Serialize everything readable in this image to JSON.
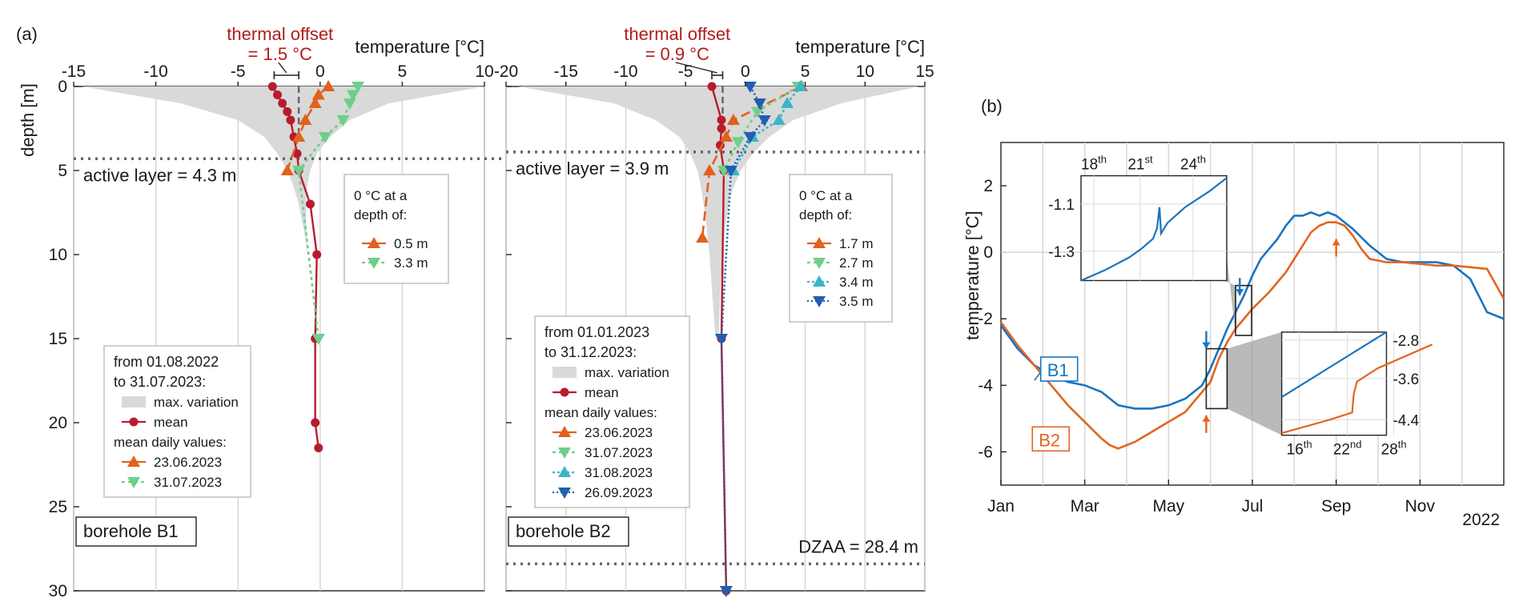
{
  "figure": {
    "panel_a_label": "(a)",
    "panel_b_label": "(b)"
  },
  "colors": {
    "mean": "#b81c2c",
    "d0623": "#e0621c",
    "d0731": "#6fcf8a",
    "d0831": "#3bb5c8",
    "d0926": "#1f5fb0",
    "variation": "#d9d9d9",
    "b1": "#1a74c0",
    "b2": "#e2651f",
    "offset_text": "#b01c1c"
  },
  "chart_data": [
    {
      "id": "B1",
      "type": "line",
      "title": "borehole B1",
      "xlabel": "temperature [°C]",
      "ylabel": "depth [m]",
      "xlim": [
        -15,
        10
      ],
      "ylim": [
        30,
        0
      ],
      "xticks": [
        "-15",
        "-10",
        "-5",
        "0",
        "5",
        "10"
      ],
      "yticks": [
        "0",
        "5",
        "10",
        "15",
        "20",
        "25",
        "30"
      ],
      "offset_label": [
        "thermal offset",
        "= 1.5 °C"
      ],
      "offset_bracket": [
        -2.8,
        -1.3
      ],
      "active_layer_depth": 4.3,
      "active_layer_label": "active layer = 4.3 m",
      "variation_envelope": {
        "depth": [
          0,
          1,
          2,
          3,
          4,
          5,
          6,
          7,
          8,
          9,
          10
        ],
        "min": [
          -14.5,
          -8.5,
          -5.0,
          -3.4,
          -2.6,
          -2.0,
          -1.6,
          -1.3,
          -1.1,
          -0.9,
          -0.8
        ],
        "max": [
          10.0,
          4.2,
          1.8,
          0.6,
          -0.2,
          -0.6,
          -0.8,
          -0.85,
          -0.85,
          -0.8,
          -0.8
        ]
      },
      "series": [
        {
          "name": "mean",
          "marker": "circle",
          "depth": [
            0,
            0.5,
            1,
            1.5,
            2,
            3,
            4,
            5,
            7,
            10,
            15,
            20,
            21.5
          ],
          "temp": [
            -2.9,
            -2.6,
            -2.3,
            -2.0,
            -1.8,
            -1.6,
            -1.4,
            -1.3,
            -0.6,
            -0.2,
            -0.3,
            -0.3,
            -0.1
          ]
        },
        {
          "name": "23.06.2023",
          "marker": "triangle-up",
          "depth": [
            0,
            0.5,
            1,
            2,
            3,
            5
          ],
          "temp": [
            0.5,
            -0.1,
            -0.3,
            -0.9,
            -1.3,
            -2.0
          ]
        },
        {
          "name": "31.07.2023",
          "marker": "triangle-down",
          "depth": [
            0,
            0.5,
            1,
            2,
            3,
            5,
            15
          ],
          "temp": [
            2.3,
            2.0,
            1.8,
            1.4,
            0.3,
            -1.3,
            -0.1
          ]
        }
      ],
      "legend": {
        "lines": [
          "from 01.08.2022",
          "to 31.07.2023:"
        ],
        "variation": "max. variation",
        "mean": "mean",
        "daily_header": "mean daily values:",
        "entries": [
          "23.06.2023",
          "31.07.2023"
        ]
      },
      "zero_legend": {
        "lines": [
          "0 °C at a",
          "depth of:"
        ],
        "entries": [
          "0.5 m",
          "3.3 m"
        ]
      }
    },
    {
      "id": "B2",
      "type": "line",
      "title": "borehole B2",
      "xlabel": "temperature [°C]",
      "ylabel": "",
      "xlim": [
        -20,
        15
      ],
      "ylim": [
        30,
        0
      ],
      "xticks": [
        "-20",
        "-15",
        "-10",
        "-5",
        "0",
        "5",
        "10",
        "15"
      ],
      "offset_label": [
        "thermal offset",
        "= 0.9 °C"
      ],
      "offset_bracket": [
        -2.8,
        -1.9
      ],
      "active_layer_depth": 3.9,
      "active_layer_label": "active layer = 3.9 m",
      "dzaa_depth": 28.4,
      "dzaa_label": "DZAA = 28.4 m",
      "variation_envelope": {
        "depth": [
          0,
          1,
          2,
          3,
          4,
          5,
          6,
          7,
          8,
          10,
          12,
          15
        ],
        "min": [
          -19.0,
          -11.0,
          -7.5,
          -5.5,
          -4.6,
          -4.0,
          -3.7,
          -3.5,
          -3.3,
          -3.0,
          -2.8,
          -2.5
        ],
        "max": [
          14.5,
          8.0,
          4.0,
          2.0,
          0.6,
          -0.4,
          -1.0,
          -1.4,
          -1.6,
          -1.9,
          -2.1,
          -2.2
        ]
      },
      "series": [
        {
          "name": "mean",
          "marker": "circle",
          "depth": [
            0,
            2,
            2.5,
            3.5,
            5,
            15,
            30
          ],
          "temp": [
            -2.8,
            -2.0,
            -2.0,
            -2.1,
            -1.8,
            -2.0,
            -1.6
          ]
        },
        {
          "name": "23.06.2023",
          "marker": "triangle-up",
          "depth": [
            0,
            2,
            3,
            5,
            9
          ],
          "temp": [
            4.7,
            -1.0,
            -1.6,
            -3.0,
            -3.6
          ]
        },
        {
          "name": "31.07.2023",
          "marker": "triangle-down",
          "depth": [
            0,
            1.5,
            3.3,
            5
          ],
          "temp": [
            4.4,
            1.0,
            -0.6,
            -1.8
          ]
        },
        {
          "name": "31.08.2023",
          "marker": "triangle-up",
          "depth": [
            0,
            1,
            2,
            3,
            5
          ],
          "temp": [
            4.6,
            3.5,
            2.8,
            0.6,
            -1.0
          ]
        },
        {
          "name": "26.09.2023",
          "marker": "triangle-down",
          "depth": [
            0,
            1,
            2,
            3,
            5,
            15,
            30
          ],
          "temp": [
            0.4,
            1.2,
            1.6,
            0.4,
            -1.2,
            -2.0,
            -1.6
          ]
        }
      ],
      "legend": {
        "lines": [
          "from 01.01.2023",
          "to 31.12.2023:"
        ],
        "variation": "max. variation",
        "mean": "mean",
        "daily_header": "mean daily values:",
        "entries": [
          "23.06.2023",
          "31.07.2023",
          "31.08.2023",
          "26.09.2023"
        ]
      },
      "zero_legend": {
        "lines": [
          "0 °C at a",
          "depth of:"
        ],
        "entries": [
          "1.7 m",
          "2.7 m",
          "3.4 m",
          "3.5 m"
        ]
      }
    },
    {
      "id": "timeseries",
      "type": "line",
      "xlabel": "",
      "ylabel": "temperature [°C]",
      "year_label": "2022",
      "xlim": [
        0,
        12
      ],
      "ylim": [
        -7,
        3.3
      ],
      "xticks": [
        "Jan",
        "Mar",
        "May",
        "Jul",
        "Sep",
        "Nov"
      ],
      "yticks": [
        "-6",
        "-4",
        "-2",
        "0",
        "2"
      ],
      "series": [
        {
          "name": "B1",
          "x": [
            0,
            0.4,
            0.8,
            1.2,
            1.6,
            2.0,
            2.4,
            2.8,
            3.2,
            3.6,
            4.0,
            4.4,
            4.8,
            5.0,
            5.2,
            5.4,
            5.6,
            5.8,
            6.0,
            6.2,
            6.4,
            6.6,
            6.8,
            7.0,
            7.2,
            7.4,
            7.6,
            7.8,
            8.0,
            8.4,
            8.8,
            9.2,
            9.6,
            10.0,
            10.4,
            10.8,
            11.2,
            11.6,
            12.0
          ],
          "y": [
            -2.2,
            -2.9,
            -3.4,
            -3.7,
            -3.9,
            -4.0,
            -4.2,
            -4.6,
            -4.7,
            -4.7,
            -4.6,
            -4.4,
            -4.0,
            -3.5,
            -2.9,
            -2.3,
            -1.8,
            -1.3,
            -0.7,
            -0.2,
            0.1,
            0.4,
            0.8,
            1.1,
            1.1,
            1.2,
            1.1,
            1.2,
            1.1,
            0.7,
            0.2,
            -0.2,
            -0.3,
            -0.3,
            -0.3,
            -0.4,
            -0.8,
            -1.8,
            -2.0
          ]
        },
        {
          "name": "B2",
          "x": [
            0,
            0.4,
            0.8,
            1.2,
            1.6,
            2.0,
            2.4,
            2.6,
            2.8,
            3.2,
            3.6,
            4.0,
            4.4,
            4.8,
            5.0,
            5.2,
            5.4,
            5.6,
            5.8,
            6.0,
            6.4,
            6.8,
            7.2,
            7.4,
            7.6,
            7.8,
            8.0,
            8.2,
            8.4,
            8.6,
            8.8,
            9.2,
            9.6,
            10.0,
            10.4,
            10.8,
            11.2,
            11.6,
            12.0
          ],
          "y": [
            -2.1,
            -2.8,
            -3.4,
            -4.0,
            -4.6,
            -5.1,
            -5.6,
            -5.8,
            -5.9,
            -5.7,
            -5.4,
            -5.1,
            -4.8,
            -4.2,
            -3.9,
            -3.2,
            -2.7,
            -2.3,
            -2.0,
            -1.7,
            -1.2,
            -0.6,
            0.2,
            0.6,
            0.8,
            0.9,
            0.9,
            0.8,
            0.5,
            0.1,
            -0.2,
            -0.3,
            -0.3,
            -0.35,
            -0.4,
            -0.4,
            -0.45,
            -0.5,
            -1.4
          ]
        }
      ],
      "insets": [
        {
          "position": "upper-left",
          "xticks": [
            "18",
            "21",
            "24"
          ],
          "xsup": [
            "th",
            "st",
            "th"
          ],
          "yticks": [
            "-1.1",
            "-1.3"
          ]
        },
        {
          "position": "lower-right",
          "xticks": [
            "16",
            "22",
            "28"
          ],
          "xsup": [
            "th",
            "nd",
            "th"
          ],
          "yticks": [
            "-2.8",
            "-3.6",
            "-4.4"
          ]
        }
      ]
    }
  ]
}
